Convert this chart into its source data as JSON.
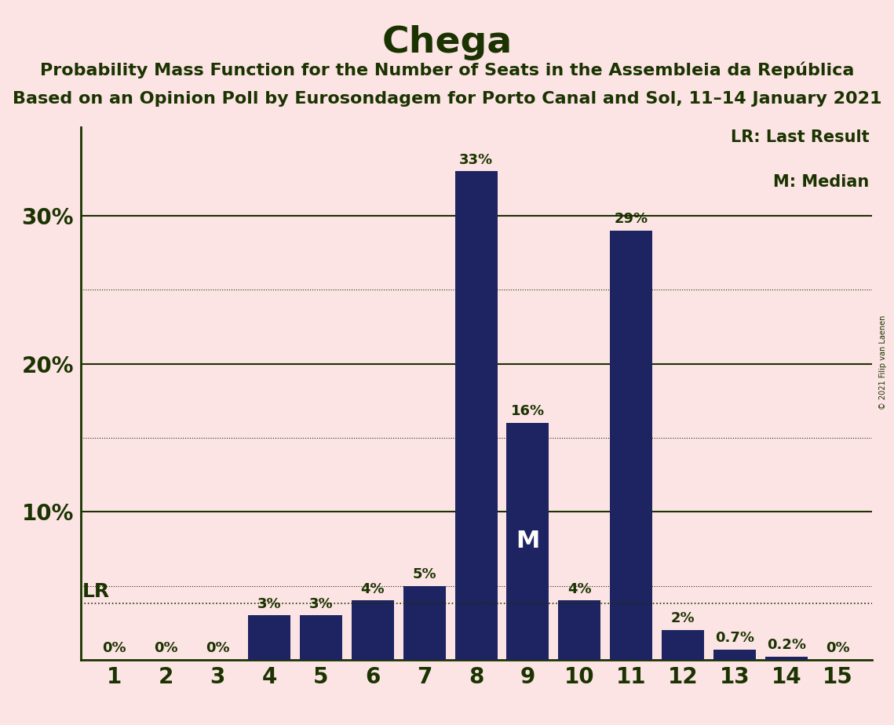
{
  "title": "Chega",
  "subtitle1": "Probability Mass Function for the Number of Seats in the Assembleia da República",
  "subtitle2": "Based on an Opinion Poll by Eurosondagem for Porto Canal and Sol, 11–14 January 2021",
  "copyright": "© 2021 Filip van Laenen",
  "seats": [
    1,
    2,
    3,
    4,
    5,
    6,
    7,
    8,
    9,
    10,
    11,
    12,
    13,
    14,
    15
  ],
  "probabilities": [
    0.0,
    0.0,
    0.0,
    3.0,
    3.0,
    4.0,
    5.0,
    33.0,
    16.0,
    4.0,
    29.0,
    2.0,
    0.7,
    0.2,
    0.0
  ],
  "bar_color": "#1e2361",
  "background_color": "#fce4e4",
  "text_color": "#1a3300",
  "label_texts": [
    "0%",
    "0%",
    "0%",
    "3%",
    "3%",
    "4%",
    "5%",
    "33%",
    "16%",
    "4%",
    "29%",
    "2%",
    "0.7%",
    "0.2%",
    "0%"
  ],
  "lr_value": 3.8,
  "median_seat": 9,
  "median_label": "M",
  "ylim": [
    0,
    36
  ],
  "yticks": [
    10,
    20,
    30
  ],
  "ytick_labels": [
    "10%",
    "20%",
    "30%"
  ],
  "solid_grid": [
    10,
    20,
    30
  ],
  "dotted_grid": [
    5,
    15,
    25
  ],
  "legend_lr": "LR: Last Result",
  "legend_m": "M: Median",
  "bar_width": 0.82,
  "title_fontsize": 34,
  "subtitle_fontsize": 16,
  "tick_fontsize": 20,
  "label_fontsize": 13,
  "legend_fontsize": 15,
  "lr_fontsize": 18,
  "median_fontsize": 22
}
